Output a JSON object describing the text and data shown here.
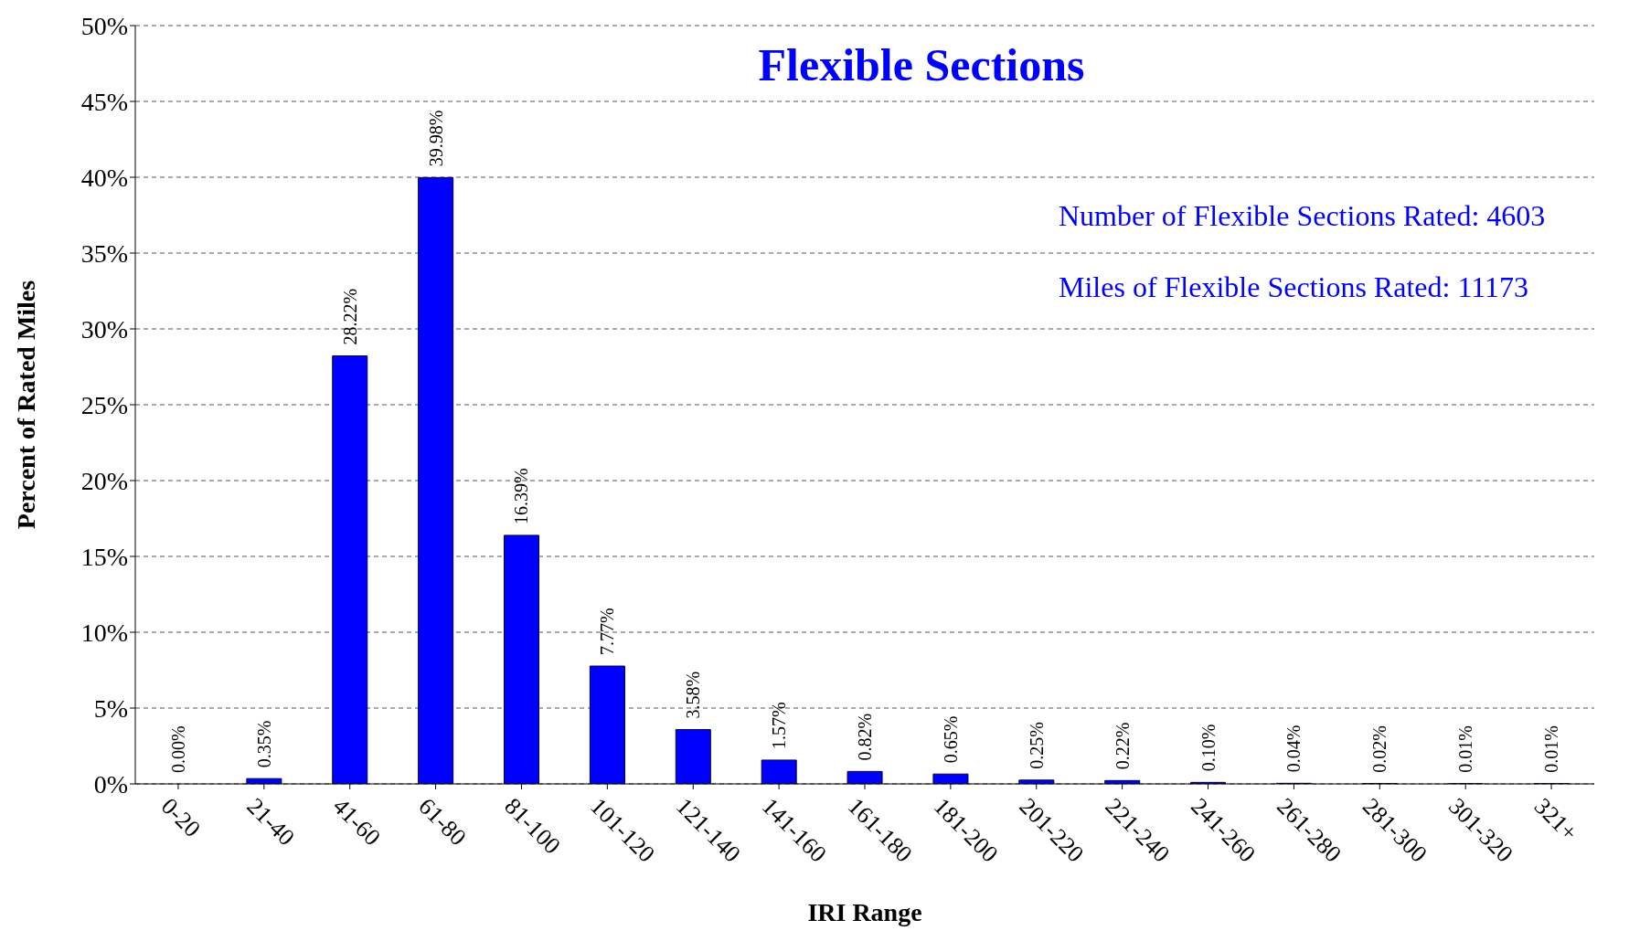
{
  "chart_data": {
    "type": "bar",
    "title": "Flexible Sections",
    "xlabel": "IRI Range",
    "ylabel": "Percent of Rated Miles",
    "categories": [
      "0-20",
      "21-40",
      "41-60",
      "61-80",
      "81-100",
      "101-120",
      "121-140",
      "141-160",
      "161-180",
      "181-200",
      "201-220",
      "221-240",
      "241-260",
      "261-280",
      "281-300",
      "301-320",
      "321+"
    ],
    "values": [
      0,
      0.35,
      28.22,
      39.98,
      16.39,
      7.77,
      3.58,
      1.57,
      0.82,
      0.65,
      0.25,
      0.22,
      0.1,
      0.04,
      0.02,
      0.01,
      0.01
    ],
    "value_labels": [
      "0.00%",
      "0.35%",
      "28.22%",
      "39.98%",
      "16.39%",
      "7.77%",
      "3.58%",
      "1.57%",
      "0.82%",
      "0.65%",
      "0.25%",
      "0.22%",
      "0.10%",
      "0.04%",
      "0.02%",
      "0.01%",
      "0.01%"
    ],
    "color": "#0000ff",
    "ylim": [
      0,
      50
    ],
    "yticks": [
      {
        "value": 0,
        "label": "0%"
      },
      {
        "value": 5,
        "label": "5%"
      },
      {
        "value": 10,
        "label": "10%"
      },
      {
        "value": 15,
        "label": "15%"
      },
      {
        "value": 20,
        "label": "20%"
      },
      {
        "value": 25,
        "label": "25%"
      },
      {
        "value": 30,
        "label": "30%"
      },
      {
        "value": 35,
        "label": "35%"
      },
      {
        "value": 40,
        "label": "40%"
      },
      {
        "value": 45,
        "label": "45%"
      },
      {
        "value": 50,
        "label": "50%"
      }
    ],
    "grid": "y",
    "annotations": [
      "Number of Flexible Sections Rated: 4603",
      "Miles of Flexible Sections Rated: 11173"
    ]
  }
}
